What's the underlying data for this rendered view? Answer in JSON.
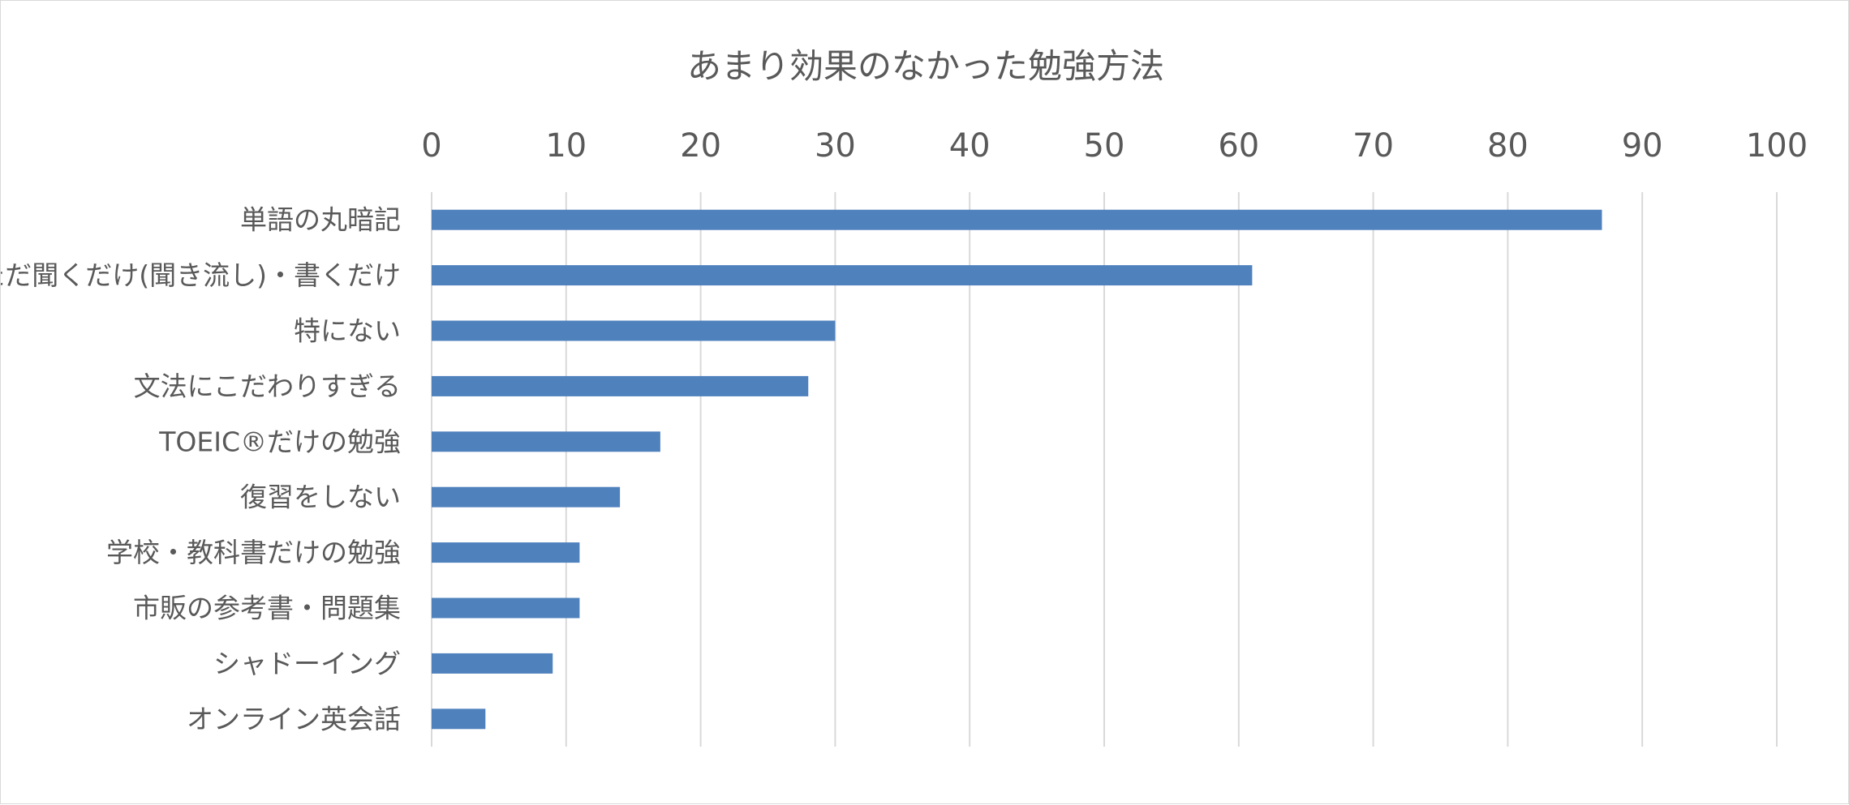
{
  "chart_data": {
    "type": "bar",
    "orientation": "horizontal",
    "title": "あまり効果のなかった勉強方法",
    "xlabel": "",
    "ylabel": "",
    "xlim": [
      0,
      100
    ],
    "x_ticks": [
      "0",
      "10",
      "20",
      "30",
      "40",
      "50",
      "60",
      "70",
      "80",
      "90",
      "100"
    ],
    "x_axis_position": "top",
    "grid": true,
    "legend": "none",
    "bar_color": "#4f81bd",
    "categories": [
      "単語の丸暗記",
      "ただ聞くだけ(聞き流し)・書くだけ",
      "特にない",
      "文法にこだわりすぎる",
      "TOEIC®だけの勉強",
      "復習をしない",
      "学校・教科書だけの勉強",
      "市販の参考書・問題集",
      "シャドーイング",
      "オンライン英会話"
    ],
    "values": [
      87,
      61,
      30,
      28,
      17,
      14,
      11,
      11,
      9,
      4
    ]
  }
}
